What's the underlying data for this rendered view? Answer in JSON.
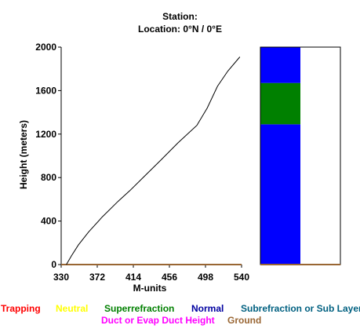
{
  "header": {
    "station": "Station:",
    "location": "Location:   0°N /   0°E"
  },
  "chart_data": {
    "type": "line",
    "xlabel": "M-units",
    "ylabel": "Height (meters)",
    "xlim": [
      330,
      540
    ],
    "ylim": [
      0,
      2000
    ],
    "xticks": [
      "330",
      "372",
      "414",
      "456",
      "498",
      "540"
    ],
    "yticks": [
      "0",
      "400",
      "800",
      "1200",
      "1600",
      "2000"
    ],
    "series": [
      {
        "color": "#000000",
        "x": [
          336,
          342,
          350,
          362,
          378,
          396,
          410,
          428,
          446,
          466,
          488,
          500,
          512,
          524,
          538
        ],
        "y": [
          0,
          80,
          180,
          300,
          440,
          580,
          680,
          820,
          960,
          1120,
          1280,
          1440,
          1640,
          1780,
          1910
        ]
      }
    ],
    "ground_color": "#996633",
    "refraction_bar": {
      "ylim": [
        0,
        2000
      ],
      "segments": [
        {
          "from": 0,
          "to": 1290,
          "color": "#0000ff",
          "label": "Normal"
        },
        {
          "from": 1290,
          "to": 1670,
          "color": "#008000",
          "label": "Superrefraction"
        },
        {
          "from": 1670,
          "to": 2000,
          "color": "#0000ff",
          "label": "Normal"
        }
      ]
    }
  },
  "legend": {
    "row1": [
      {
        "label": "Trapping",
        "color": "#ff0000"
      },
      {
        "label": "Neutral",
        "color": "#ffff00"
      },
      {
        "label": "Superrefraction",
        "color": "#008000"
      },
      {
        "label": "Normal",
        "color": "#0000a0"
      },
      {
        "label": "Subrefraction or Sub Layer",
        "color": "#006080"
      }
    ],
    "row2": [
      {
        "label": "Duct or Evap Duct Height",
        "color": "#ff00ff"
      },
      {
        "label": "Ground",
        "color": "#996633"
      }
    ]
  }
}
